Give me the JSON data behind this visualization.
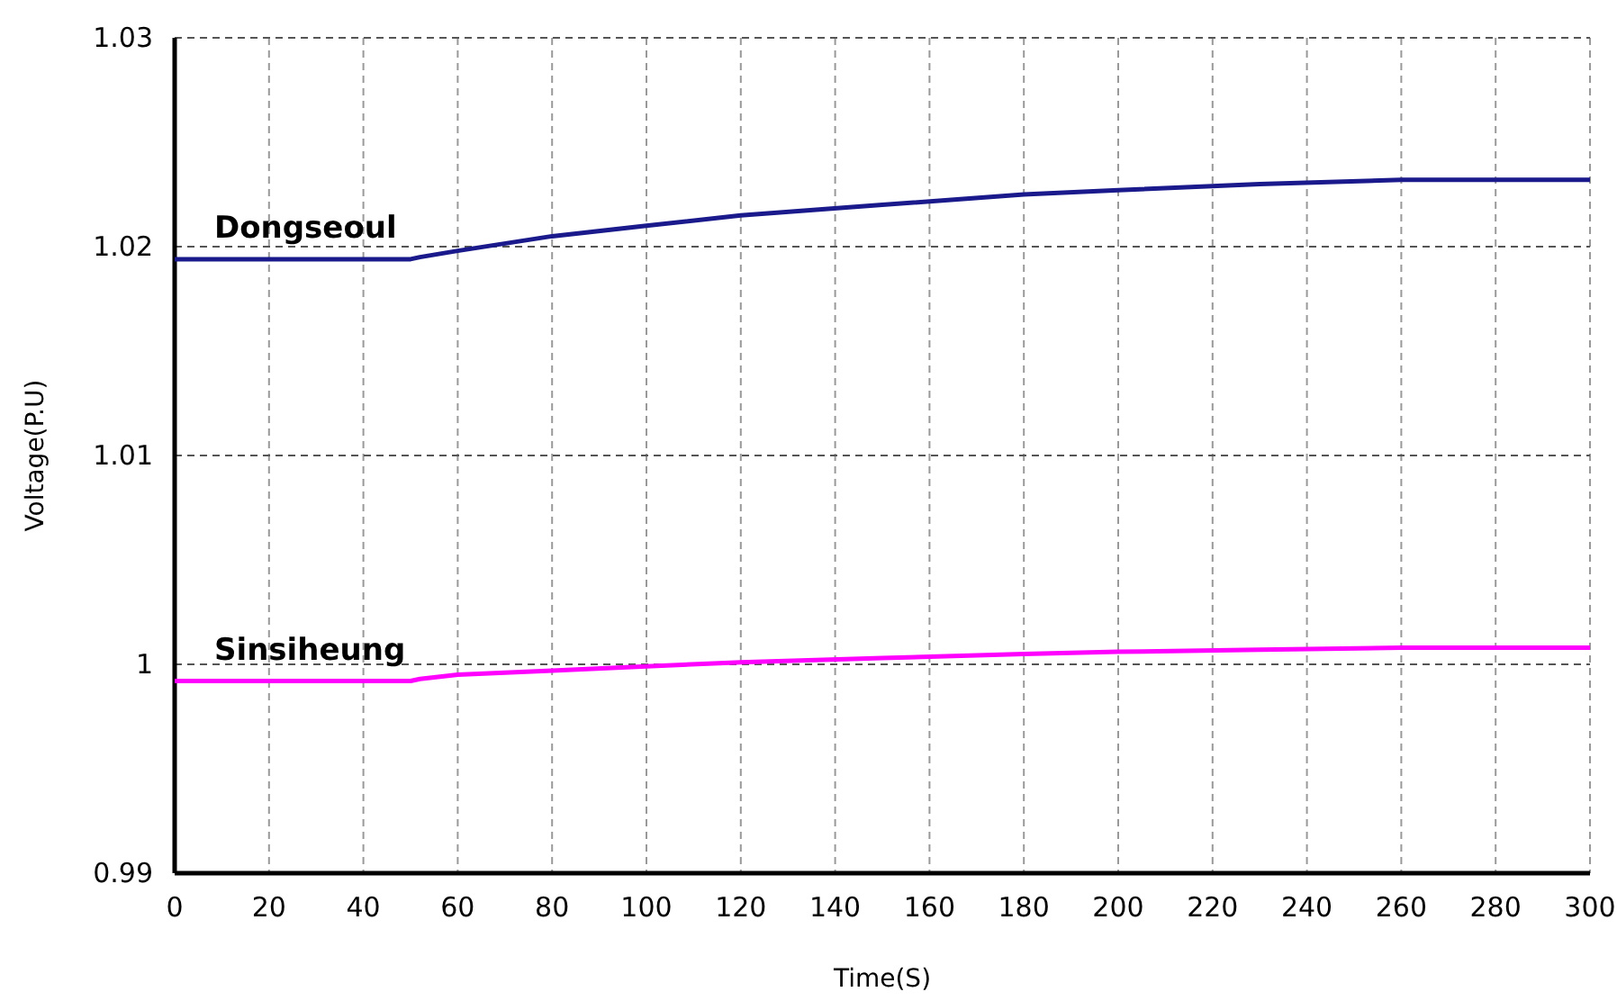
{
  "chart_data": {
    "type": "line",
    "xlabel": "Time(S)",
    "ylabel": "Voltage(P.U)",
    "xlim": [
      0,
      300
    ],
    "xticks": [
      0,
      20,
      40,
      60,
      80,
      100,
      120,
      140,
      160,
      180,
      200,
      220,
      240,
      260,
      280,
      300
    ],
    "ylim": [
      0.99,
      1.03
    ],
    "yticks": [
      0.99,
      1,
      1.01,
      1.02,
      1.03
    ],
    "grid": true,
    "line_style": "solid",
    "series": [
      {
        "name": "Dongseoul",
        "color": "#1a1a8c",
        "x": [
          0,
          50,
          52,
          60,
          80,
          100,
          120,
          150,
          180,
          200,
          230,
          260,
          300
        ],
        "values": [
          1.0194,
          1.0194,
          1.0195,
          1.0198,
          1.0205,
          1.021,
          1.0215,
          1.022,
          1.0225,
          1.0227,
          1.023,
          1.0232,
          1.0232
        ]
      },
      {
        "name": "Sinsiheung",
        "color": "#ff00ff",
        "x": [
          0,
          50,
          52,
          60,
          80,
          100,
          120,
          150,
          180,
          200,
          230,
          260,
          300
        ],
        "values": [
          0.9992,
          0.9992,
          0.9993,
          0.9995,
          0.9997,
          0.9999,
          1.0001,
          1.0003,
          1.0005,
          1.0006,
          1.0007,
          1.0008,
          1.0008
        ]
      }
    ]
  }
}
